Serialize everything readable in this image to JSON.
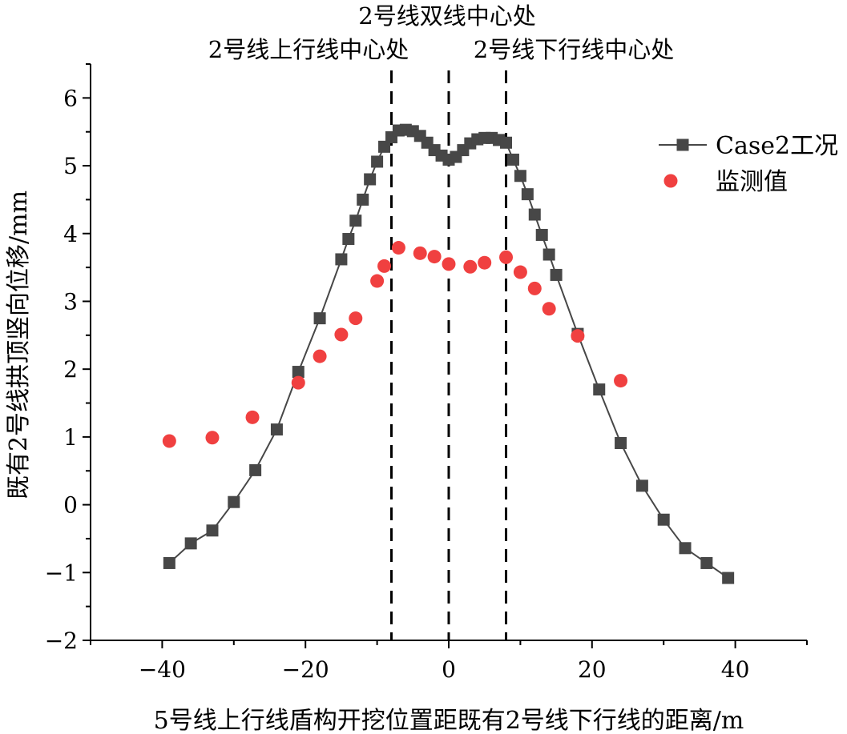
{
  "chart_data": {
    "type": "scatter",
    "title": "",
    "xlabel": "5号线上行线盾构开挖位置距既有2号线下行线的距离/m",
    "ylabel": "既有2号线拱顶竖向位移/mm",
    "xlim": [
      -50,
      50
    ],
    "ylim": [
      -2,
      6.5
    ],
    "xticks": [
      -40,
      -20,
      0,
      20,
      40
    ],
    "yticks": [
      -2,
      -1,
      0,
      1,
      2,
      3,
      4,
      5,
      6
    ],
    "xtick_labels": [
      "−40",
      "−20",
      "0",
      "20",
      "40"
    ],
    "ytick_labels": [
      "−2",
      "−1",
      "0",
      "1",
      "2",
      "3",
      "4",
      "5",
      "6"
    ],
    "reference_lines": [
      {
        "x": -8,
        "label": "2号线上行线中心处"
      },
      {
        "x": 0,
        "label": "2号线双线中心处"
      },
      {
        "x": 8,
        "label": "2号线下行线中心处"
      }
    ],
    "series": [
      {
        "name": "Case2工况",
        "style": "line-square",
        "color": "#474747",
        "x": [
          -39,
          -36,
          -33,
          -30,
          -27,
          -24,
          -21,
          -18,
          -15,
          -14,
          -13,
          -12,
          -11,
          -10,
          -9,
          -8,
          -7,
          -6,
          -5,
          -4,
          -3,
          -2,
          -1,
          0,
          1,
          2,
          3,
          4,
          5,
          6,
          7,
          8,
          9,
          10,
          11,
          12,
          13,
          14,
          15,
          18,
          21,
          24,
          27,
          30,
          33,
          36,
          39
        ],
        "values": [
          -0.86,
          -0.57,
          -0.38,
          0.04,
          0.51,
          1.11,
          1.96,
          2.75,
          3.62,
          3.92,
          4.19,
          4.5,
          4.8,
          5.06,
          5.28,
          5.42,
          5.52,
          5.53,
          5.51,
          5.44,
          5.34,
          5.23,
          5.15,
          5.09,
          5.13,
          5.23,
          5.33,
          5.39,
          5.41,
          5.41,
          5.38,
          5.34,
          5.09,
          4.85,
          4.58,
          4.28,
          3.98,
          3.69,
          3.39,
          2.52,
          1.7,
          0.91,
          0.28,
          -0.22,
          -0.64,
          -0.86,
          -1.08
        ]
      },
      {
        "name": "监测值",
        "style": "scatter-circle",
        "color": "#f04040",
        "x": [
          -39,
          -33,
          -27.4,
          -21,
          -18,
          -15,
          -13,
          -10,
          -9,
          -7,
          -4,
          -2,
          0,
          3,
          5,
          8,
          10,
          12,
          14,
          18,
          24
        ],
        "values": [
          0.94,
          0.99,
          1.29,
          1.8,
          2.19,
          2.51,
          2.75,
          3.3,
          3.52,
          3.79,
          3.71,
          3.66,
          3.55,
          3.51,
          3.57,
          3.65,
          3.43,
          3.19,
          2.89,
          2.49,
          1.83
        ]
      }
    ],
    "legend_position": "top-right"
  }
}
